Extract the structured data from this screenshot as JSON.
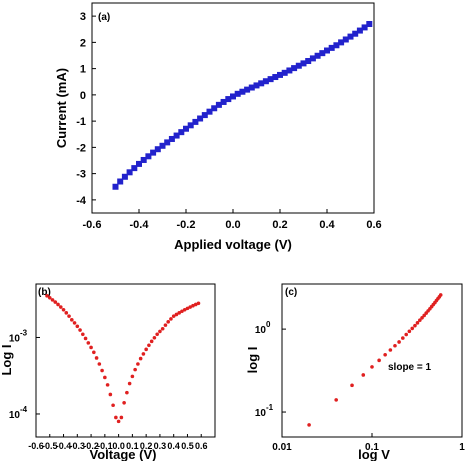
{
  "chart_data": [
    {
      "panel": "(a)",
      "type": "scatter",
      "xlabel": "Applied voltage (V)",
      "ylabel": "Current (mA)",
      "xlim": [
        -0.6,
        0.6
      ],
      "ylim": [
        -4.5,
        3.5
      ],
      "xticks": [
        "-0.6",
        "-0.4",
        "-0.2",
        "0.0",
        "0.2",
        "0.4",
        "0.6"
      ],
      "yticks": [
        "-4",
        "-3",
        "-2",
        "-1",
        "0",
        "1",
        "2",
        "3"
      ],
      "marker": "square",
      "color": "#2222cc",
      "series": [
        {
          "x": [
            -0.5,
            -0.48,
            -0.46,
            -0.44,
            -0.42,
            -0.4,
            -0.38,
            -0.36,
            -0.34,
            -0.32,
            -0.3,
            -0.28,
            -0.26,
            -0.24,
            -0.22,
            -0.2,
            -0.18,
            -0.16,
            -0.14,
            -0.12,
            -0.1,
            -0.08,
            -0.06,
            -0.04,
            -0.02,
            0.0,
            0.02,
            0.04,
            0.06,
            0.08,
            0.1,
            0.12,
            0.14,
            0.16,
            0.18,
            0.2,
            0.22,
            0.24,
            0.26,
            0.28,
            0.3,
            0.32,
            0.34,
            0.36,
            0.38,
            0.4,
            0.42,
            0.44,
            0.46,
            0.48,
            0.5,
            0.52,
            0.54,
            0.56,
            0.58
          ],
          "y": [
            -3.5,
            -3.3,
            -3.12,
            -2.95,
            -2.79,
            -2.63,
            -2.48,
            -2.34,
            -2.2,
            -2.07,
            -1.94,
            -1.81,
            -1.68,
            -1.55,
            -1.42,
            -1.29,
            -1.16,
            -1.03,
            -0.9,
            -0.77,
            -0.64,
            -0.51,
            -0.38,
            -0.27,
            -0.16,
            -0.06,
            0.04,
            0.12,
            0.2,
            0.28,
            0.36,
            0.44,
            0.52,
            0.6,
            0.68,
            0.76,
            0.84,
            0.93,
            1.02,
            1.11,
            1.2,
            1.29,
            1.39,
            1.49,
            1.59,
            1.69,
            1.79,
            1.89,
            2.0,
            2.11,
            2.22,
            2.33,
            2.45,
            2.57,
            2.7
          ]
        }
      ]
    },
    {
      "panel": "(b)",
      "type": "scatter",
      "xlabel": "Voltage (V)",
      "ylabel": "Log I",
      "yscale": "log",
      "xlim": [
        -0.6,
        0.7
      ],
      "ylim": [
        5e-05,
        0.005
      ],
      "xticks": [
        "-0.6",
        "-0.5",
        "-0.4",
        "-0.3",
        "-0.2",
        "-0.1",
        "0.0",
        "0.1",
        "0.2",
        "0.3",
        "0.4",
        "0.5",
        "0.6"
      ],
      "yticks": [
        {
          "value": 0.001,
          "base": "10",
          "exp": "-3"
        },
        {
          "value": 0.0001,
          "base": "10",
          "exp": "-4"
        }
      ],
      "marker": "circle",
      "color": "#e02020",
      "series": [
        {
          "x": [
            -0.52,
            -0.5,
            -0.48,
            -0.46,
            -0.44,
            -0.42,
            -0.4,
            -0.38,
            -0.36,
            -0.34,
            -0.32,
            -0.3,
            -0.28,
            -0.26,
            -0.24,
            -0.22,
            -0.2,
            -0.18,
            -0.16,
            -0.14,
            -0.12,
            -0.1,
            -0.08,
            -0.06,
            -0.04,
            -0.02,
            0.0,
            0.02,
            0.04,
            0.06,
            0.08,
            0.1,
            0.12,
            0.14,
            0.16,
            0.18,
            0.2,
            0.22,
            0.24,
            0.26,
            0.28,
            0.3,
            0.32,
            0.34,
            0.36,
            0.38,
            0.4,
            0.42,
            0.44,
            0.46,
            0.48,
            0.5,
            0.52,
            0.54,
            0.56,
            0.58
          ],
          "y": [
            0.0035,
            0.0033,
            0.0031,
            0.0029,
            0.0027,
            0.0025,
            0.0023,
            0.0021,
            0.0019,
            0.0017,
            0.00155,
            0.0014,
            0.00125,
            0.0011,
            0.00097,
            0.00085,
            0.00074,
            0.00064,
            0.00054,
            0.00045,
            0.00037,
            0.0003,
            0.00024,
            0.00018,
            0.00013,
            9e-05,
            8e-05,
            9e-05,
            0.00014,
            0.00019,
            0.00025,
            0.00031,
            0.00038,
            0.00045,
            0.00053,
            0.00061,
            0.0007,
            0.00079,
            0.00089,
            0.00099,
            0.0011,
            0.0012,
            0.0013,
            0.00145,
            0.0016,
            0.00175,
            0.0019,
            0.002,
            0.0021,
            0.0022,
            0.0023,
            0.0024,
            0.0025,
            0.0026,
            0.0027,
            0.0028
          ]
        }
      ]
    },
    {
      "panel": "(c)",
      "type": "scatter",
      "xlabel": "log V",
      "ylabel": "log I",
      "xscale": "log",
      "yscale": "log",
      "xlim": [
        0.01,
        1.0
      ],
      "ylim": [
        0.05,
        3.5
      ],
      "xticks": [
        {
          "value": 0.01,
          "label": "0.01"
        },
        {
          "value": 0.1,
          "label": "0.1"
        },
        {
          "value": 1,
          "label": "1"
        }
      ],
      "yticks": [
        {
          "value": 1,
          "base": "10",
          "exp": "0"
        },
        {
          "value": 0.1,
          "base": "10",
          "exp": "-1"
        }
      ],
      "annotations": [
        "slope = 1"
      ],
      "marker": "circle",
      "color": "#e02020",
      "series": [
        {
          "x": [
            0.02,
            0.04,
            0.06,
            0.08,
            0.1,
            0.12,
            0.14,
            0.16,
            0.18,
            0.2,
            0.22,
            0.24,
            0.26,
            0.28,
            0.3,
            0.32,
            0.34,
            0.36,
            0.38,
            0.4,
            0.42,
            0.44,
            0.46,
            0.48,
            0.5,
            0.52,
            0.54,
            0.56,
            0.58
          ],
          "y": [
            0.07,
            0.14,
            0.21,
            0.28,
            0.35,
            0.42,
            0.49,
            0.56,
            0.63,
            0.7,
            0.78,
            0.86,
            0.94,
            1.02,
            1.1,
            1.19,
            1.28,
            1.37,
            1.46,
            1.56,
            1.66,
            1.76,
            1.87,
            1.98,
            2.09,
            2.21,
            2.33,
            2.45,
            2.58
          ]
        }
      ]
    }
  ]
}
